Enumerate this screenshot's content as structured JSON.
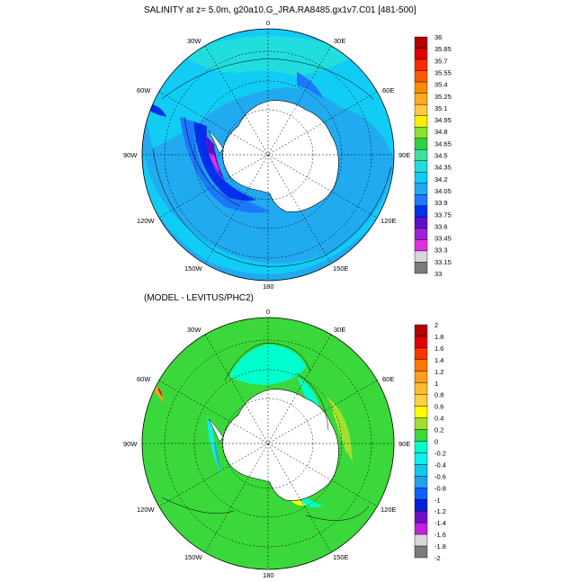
{
  "top": {
    "title": "SALINITY at z=   5.0m, g20a10.G_JRA.RA8485.gx1v7.C01 [481-500]",
    "colorbar": {
      "labels": [
        "36",
        "35.85",
        "35.7",
        "35.55",
        "35.4",
        "35.25",
        "35.1",
        "34.95",
        "34.8",
        "34.65",
        "34.5",
        "34.35",
        "34.2",
        "34.05",
        "33.9",
        "33.75",
        "33.6",
        "33.45",
        "33.3",
        "33.15",
        "33"
      ],
      "colors": [
        "#b40000",
        "#e00000",
        "#ff2a00",
        "#ff5a00",
        "#ff8c00",
        "#ffaa20",
        "#ffc83c",
        "#ffee00",
        "#88e030",
        "#30d040",
        "#40e0a0",
        "#22dddd",
        "#11ccf5",
        "#22aaf0",
        "#1e78ff",
        "#0030ee",
        "#6010cc",
        "#a020d8",
        "#e030e0",
        "#d6d6d6",
        "#7a7a7a"
      ]
    },
    "longitudes": [
      "0",
      "30E",
      "60E",
      "90E",
      "120E",
      "150E",
      "180",
      "150W",
      "120W",
      "90W",
      "60W",
      "30W"
    ]
  },
  "bottom": {
    "title": "(MODEL - LEVITUS/PHC2)",
    "colorbar": {
      "labels": [
        "2",
        "1.8",
        "1.6",
        "1.4",
        "1.2",
        "1",
        "0.8",
        "0.6",
        "0.4",
        "0.2",
        "0",
        "-0.2",
        "-0.4",
        "-0.6",
        "-0.8",
        "-1",
        "-1.2",
        "-1.4",
        "-1.6",
        "-1.8",
        "-2"
      ],
      "colors": [
        "#b40000",
        "#e00000",
        "#ff3300",
        "#ff7700",
        "#ff9e20",
        "#ffba30",
        "#ffd040",
        "#ffff00",
        "#a0e030",
        "#3ad83a",
        "#00ffcc",
        "#11eeee",
        "#11c8f0",
        "#22a0f0",
        "#1060ff",
        "#0020dd",
        "#7010c8",
        "#c020e0",
        "#d6d6d6",
        "#7a7a7a"
      ]
    },
    "longitudes": [
      "0",
      "30E",
      "60E",
      "90E",
      "120E",
      "150E",
      "180",
      "150W",
      "120W",
      "90W",
      "60W",
      "30W"
    ]
  },
  "colors": {
    "land": "#ffffff",
    "ocean_top_main": "#22aaf0",
    "ocean_top_light": "#11ccf5",
    "ocean_bottom_main": "#3ad83a"
  }
}
